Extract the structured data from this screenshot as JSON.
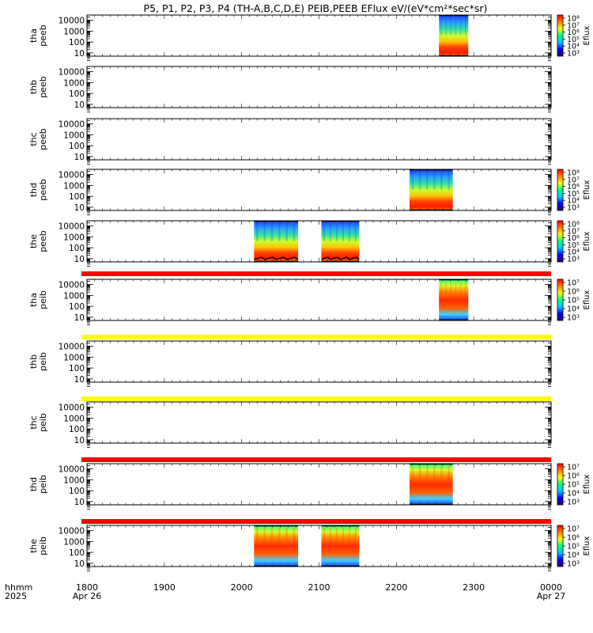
{
  "title": "P5, P1, P2, P3, P4 (TH-A,B,C,D,E) PEIB,PEEB EFlux eV/(eV*cm²*sec*sr)",
  "time_axis": {
    "row1_label": "hhmm",
    "row2_label": "2025",
    "ticks": [
      {
        "t": 1800,
        "label": "1800",
        "sublabel": "Apr 26"
      },
      {
        "t": 1900,
        "label": "1900",
        "sublabel": ""
      },
      {
        "t": 2000,
        "label": "2000",
        "sublabel": ""
      },
      {
        "t": 2100,
        "label": "2100",
        "sublabel": ""
      },
      {
        "t": 2200,
        "label": "2200",
        "sublabel": ""
      },
      {
        "t": 2300,
        "label": "2300",
        "sublabel": ""
      },
      {
        "t": 2400,
        "label": "0000",
        "sublabel": "Apr 27"
      }
    ]
  },
  "chart_data": {
    "type": "heatmap",
    "x_range_hhmm": [
      1800,
      2400
    ],
    "y_scale": "log",
    "ylim_eV": [
      5,
      30000
    ],
    "y_ticks": [
      "10",
      "100",
      "1000",
      "10000"
    ],
    "colormap": [
      "#2a0060",
      "#0000ff",
      "#00c8ff",
      "#00ff80",
      "#ffff00",
      "#ff8000",
      "#ff0000"
    ],
    "panels": [
      {
        "probe": "tha",
        "species": "peeb",
        "colorbar": {
          "label": "Eflux",
          "ticks": [
            "10³",
            "10⁴",
            "10⁵",
            "10⁶",
            "10⁷",
            "10⁸"
          ]
        },
        "data_intervals": [
          {
            "start": 2255,
            "end": 2293
          }
        ],
        "flag_bar": null
      },
      {
        "probe": "thb",
        "species": "peeb",
        "colorbar": null,
        "data_intervals": [],
        "flag_bar": null
      },
      {
        "probe": "thc",
        "species": "peeb",
        "colorbar": null,
        "data_intervals": [],
        "flag_bar": null
      },
      {
        "probe": "thd",
        "species": "peeb",
        "colorbar": {
          "label": "Eflux",
          "ticks": [
            "10³",
            "10⁴",
            "10⁵",
            "10⁶",
            "10⁷",
            "10⁸"
          ]
        },
        "data_intervals": [
          {
            "start": 2217,
            "end": 2273
          }
        ],
        "flag_bar": null
      },
      {
        "probe": "the",
        "species": "peeb",
        "colorbar": {
          "label": "Eflux",
          "ticks": [
            "10³",
            "10⁴",
            "10⁵",
            "10⁶",
            "10⁷",
            "10⁸"
          ]
        },
        "data_intervals": [
          {
            "start": 2016,
            "end": 2073
          },
          {
            "start": 2103,
            "end": 2152
          }
        ],
        "flag_bar": "#ff0000"
      },
      {
        "probe": "tha",
        "species": "peib",
        "colorbar": {
          "label": "Eflux",
          "ticks": [
            "10³",
            "10⁴",
            "10⁵",
            "10⁶",
            "10⁷"
          ]
        },
        "data_intervals": [
          {
            "start": 2255,
            "end": 2293
          }
        ],
        "flag_bar": "#ffff00"
      },
      {
        "probe": "thb",
        "species": "peib",
        "colorbar": null,
        "data_intervals": [],
        "flag_bar": "#ffff00"
      },
      {
        "probe": "thc",
        "species": "peib",
        "colorbar": null,
        "data_intervals": [],
        "flag_bar": "#ff0000"
      },
      {
        "probe": "thd",
        "species": "peib",
        "colorbar": {
          "label": "Eflux",
          "ticks": [
            "10³",
            "10⁴",
            "10⁵",
            "10⁶",
            "10⁷"
          ]
        },
        "data_intervals": [
          {
            "start": 2217,
            "end": 2273
          }
        ],
        "flag_bar": "#ff0000"
      },
      {
        "probe": "the",
        "species": "peib",
        "colorbar": {
          "label": "Eflux",
          "ticks": [
            "10³",
            "10⁴",
            "10⁵",
            "10⁶",
            "10⁷"
          ]
        },
        "data_intervals": [
          {
            "start": 2016,
            "end": 2073
          },
          {
            "start": 2103,
            "end": 2152
          }
        ],
        "flag_bar": null
      }
    ]
  }
}
